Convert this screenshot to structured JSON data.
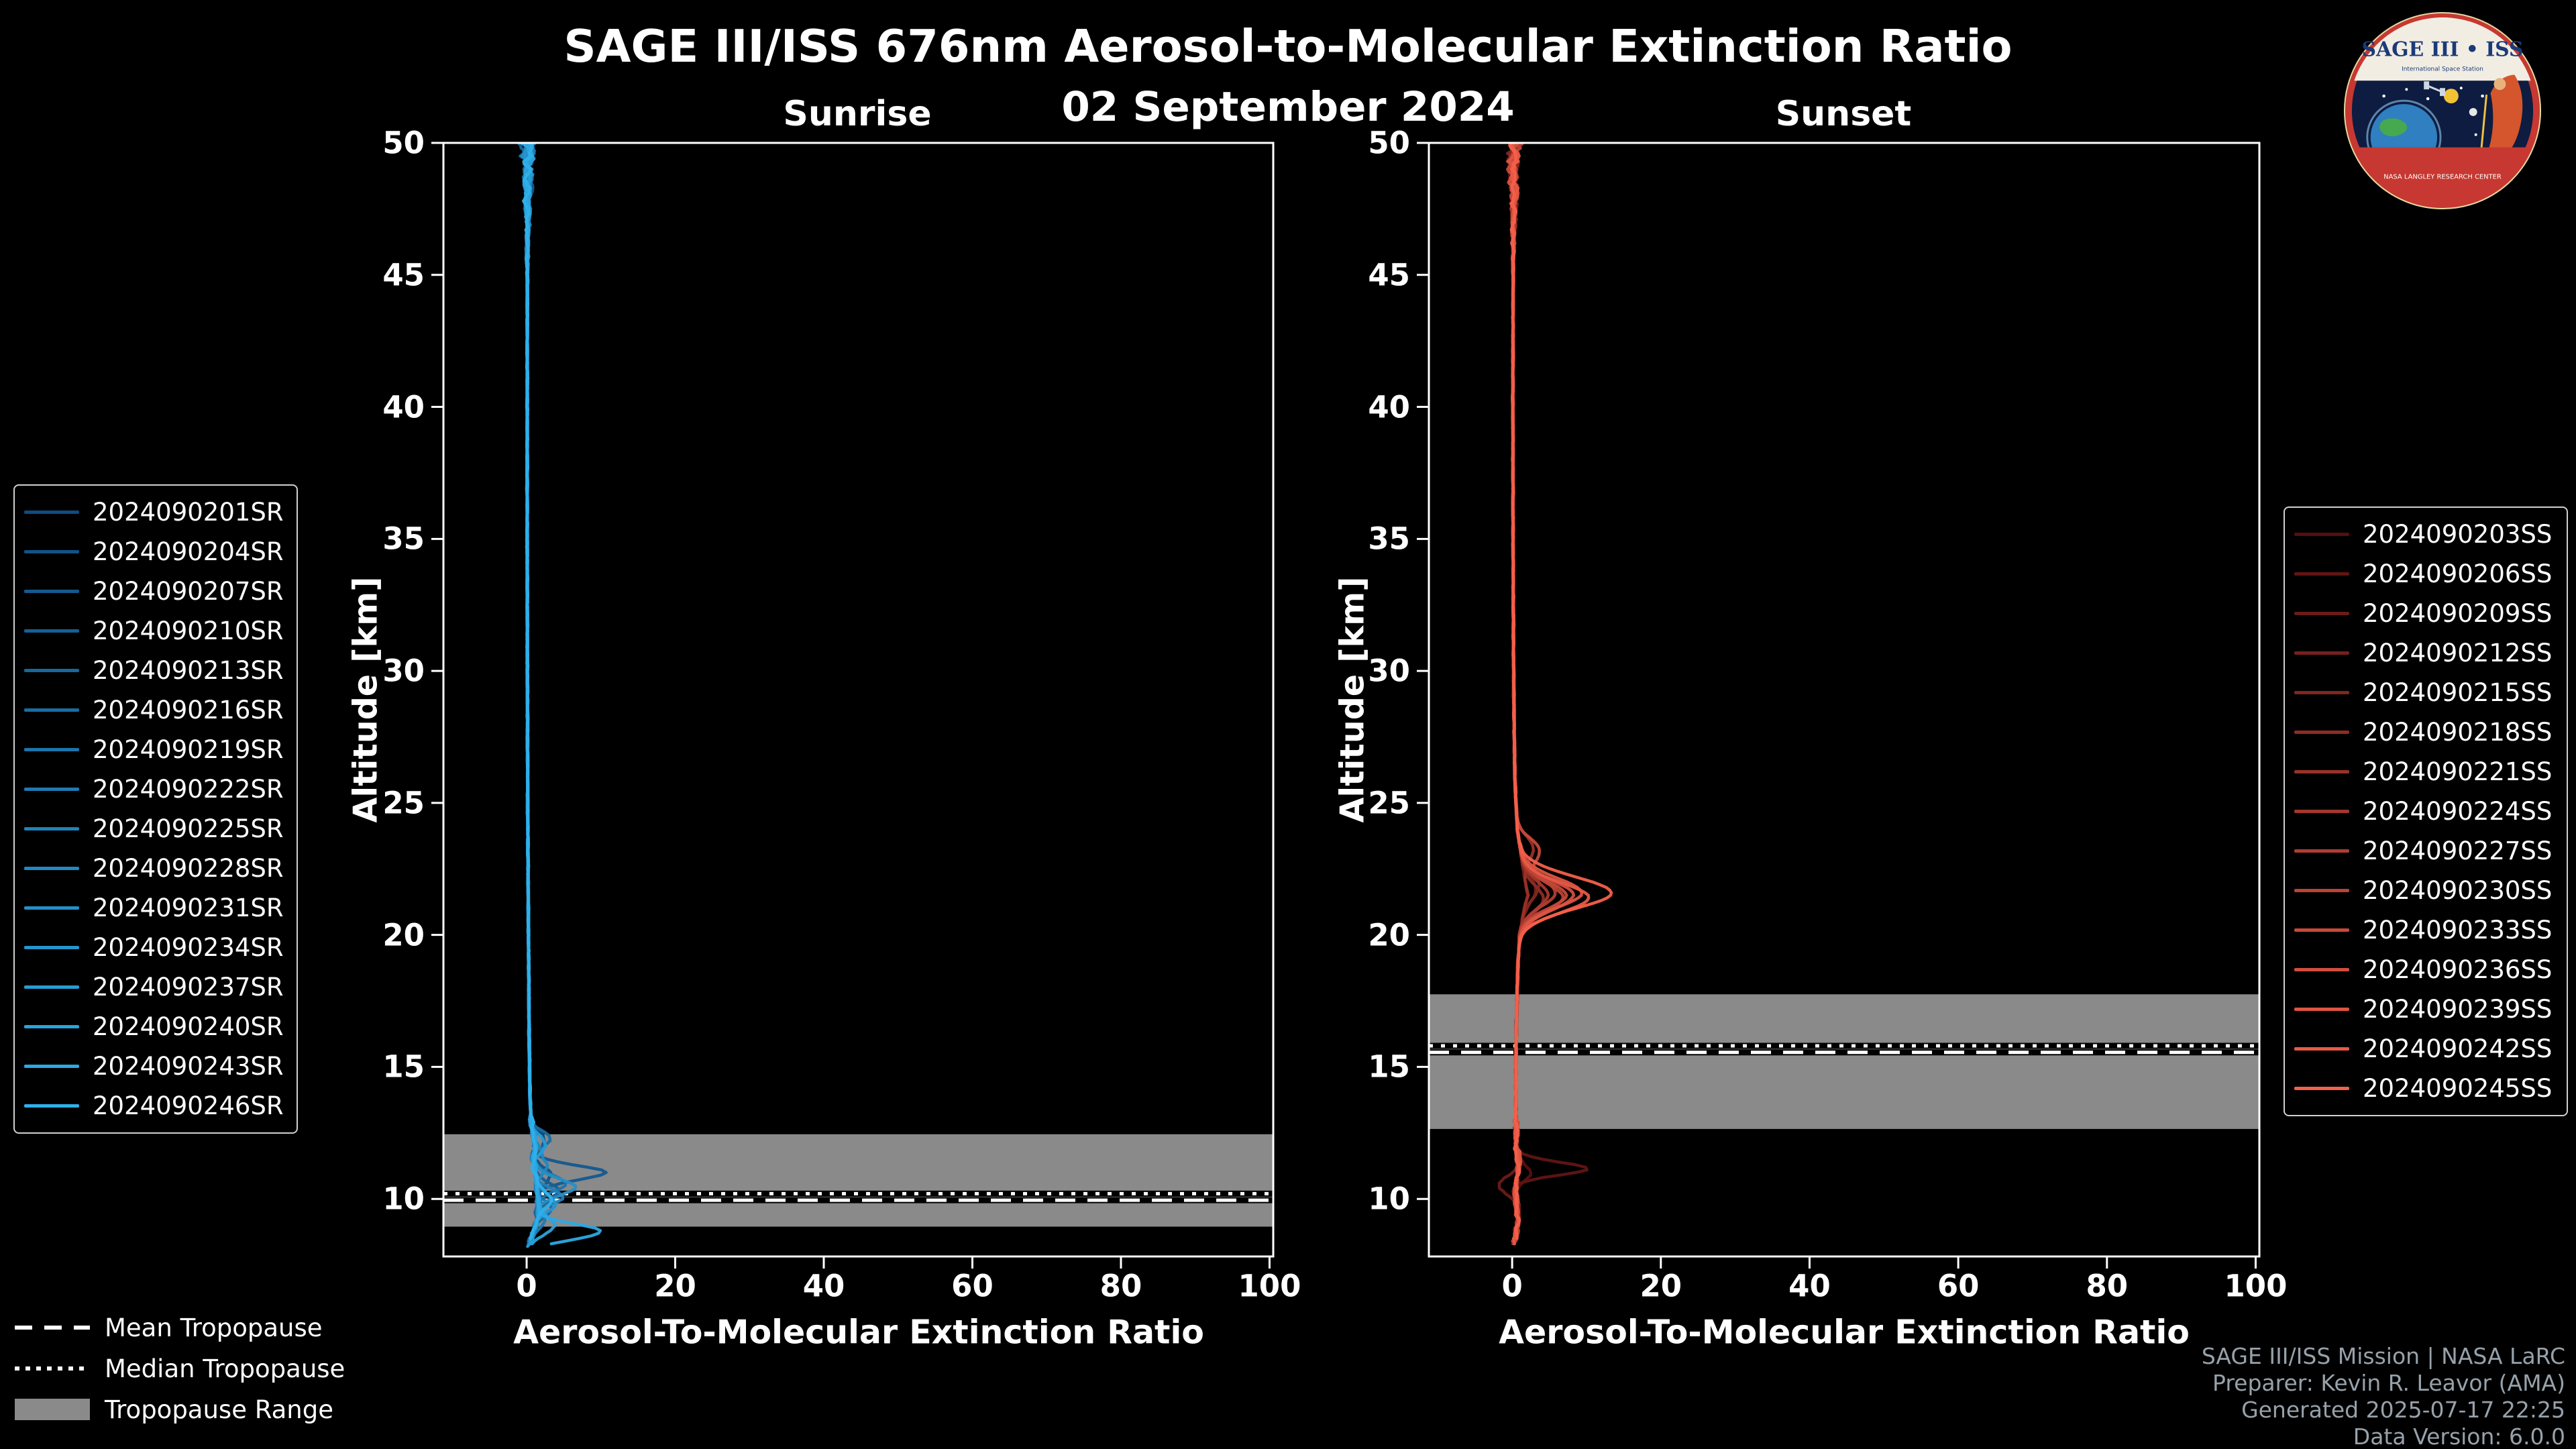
{
  "title": "SAGE III/ISS 676nm Aerosol-to-Molecular Extinction Ratio",
  "date": "02 September 2024",
  "logo": {
    "title": "SAGE III • ISS",
    "subtitle": "International Space Station",
    "ring_text": "NASA LANGLEY RESEARCH CENTER"
  },
  "credits": {
    "line1": "SAGE III/ISS Mission | NASA LaRC",
    "line2": "Preparer: Kevin R. Leavor (AMA)",
    "line3": "Generated 2025-07-17 22:25",
    "line4": "Data Version: 6.0.0"
  },
  "tropopause_legend": [
    {
      "label": "Mean Tropopause",
      "style": "dashed"
    },
    {
      "label": "Median Tropopause",
      "style": "dotted"
    },
    {
      "label": "Tropopause Range",
      "style": "band"
    }
  ],
  "colors": {
    "background": "#000000",
    "text": "#ffffff",
    "band": "#8a8a8a",
    "credits": "#97a1aa",
    "sunrise_accent": "#2fb0ea",
    "sunset_accent": "#f4604a"
  },
  "chart_data": [
    {
      "type": "line",
      "panel": "sunrise",
      "title": "Sunrise",
      "xlabel": "Aerosol-To-Molecular Extinction Ratio",
      "ylabel": "Altitude [km]",
      "xlim": [
        -11.2,
        100.5
      ],
      "ylim": [
        7.82,
        50
      ],
      "xticks": [
        0,
        20,
        40,
        60,
        80,
        100
      ],
      "yticks": [
        10,
        15,
        20,
        25,
        30,
        35,
        40,
        45,
        50
      ],
      "grid": false,
      "tropopause": {
        "mean": 9.95,
        "median": 10.2,
        "range": [
          8.95,
          12.45
        ]
      },
      "base_profile": [
        [
          50,
          0.2
        ],
        [
          48,
          0.15
        ],
        [
          46,
          0.1
        ],
        [
          44,
          0.1
        ],
        [
          40,
          0.08
        ],
        [
          35,
          0.08
        ],
        [
          30,
          0.1
        ],
        [
          25,
          0.15
        ],
        [
          20,
          0.25
        ],
        [
          16,
          0.35
        ],
        [
          14,
          0.45
        ],
        [
          13,
          0.6
        ],
        [
          12.5,
          0.9
        ],
        [
          12,
          1.1
        ],
        [
          11.5,
          0.9
        ],
        [
          11,
          1.2
        ],
        [
          10.5,
          1.4
        ],
        [
          10,
          1.6
        ],
        [
          9.5,
          1.4
        ],
        [
          9,
          1.2
        ],
        [
          8.6,
          0.8
        ],
        [
          8.2,
          0.3
        ]
      ],
      "series": [
        {
          "name": "2024090201SR",
          "color": "#0f4c81",
          "features": [
            [
              12.2,
              1.6,
              0.3
            ]
          ]
        },
        {
          "name": "2024090204SR",
          "color": "#115388",
          "features": [
            [
              10.9,
              2.2,
              0.3
            ]
          ]
        },
        {
          "name": "2024090207SR",
          "color": "#13598f",
          "features": [
            [
              11.0,
              9.3,
              0.28
            ]
          ]
        },
        {
          "name": "2024090210SR",
          "color": "#156096",
          "features": [
            [
              10.3,
              2.8,
              0.3
            ]
          ]
        },
        {
          "name": "2024090213SR",
          "color": "#17679d",
          "features": [
            [
              9.6,
              1.8,
              0.3
            ]
          ]
        },
        {
          "name": "2024090216SR",
          "color": "#196da4",
          "features": [
            [
              12.3,
              2.0,
              0.3
            ]
          ]
        },
        {
          "name": "2024090219SR",
          "color": "#1c74ab",
          "features": [
            [
              10.6,
              3.8,
              0.3
            ]
          ]
        },
        {
          "name": "2024090222SR",
          "color": "#1e7bb2",
          "features": [
            [
              9.2,
              1.4,
              0.25
            ]
          ]
        },
        {
          "name": "2024090225SR",
          "color": "#2081b9",
          "features": [
            [
              10.1,
              3.2,
              0.3
            ]
          ]
        },
        {
          "name": "2024090228SR",
          "color": "#2288c0",
          "features": [
            [
              11.4,
              1.8,
              0.3
            ]
          ]
        },
        {
          "name": "2024090231SR",
          "color": "#248fc7",
          "features": [
            [
              10.45,
              5.2,
              0.3
            ]
          ]
        },
        {
          "name": "2024090234SR",
          "color": "#2695ce",
          "features": [
            [
              9.8,
              2.4,
              0.3
            ]
          ]
        },
        {
          "name": "2024090237SR",
          "color": "#289cd5",
          "features": [
            [
              12.1,
              1.6,
              0.3
            ]
          ]
        },
        {
          "name": "2024090240SR",
          "color": "#2aa3dc",
          "features": [
            [
              9.0,
              2.8,
              0.3
            ]
          ]
        },
        {
          "name": "2024090243SR",
          "color": "#2da9e3",
          "features": [
            [
              8.75,
              8.8,
              0.3
            ]
          ]
        },
        {
          "name": "2024090246SR",
          "color": "#2fb0ea",
          "features": [
            [
              10.0,
              1.8,
              0.3
            ]
          ]
        }
      ]
    },
    {
      "type": "line",
      "panel": "sunset",
      "title": "Sunset",
      "xlabel": "Aerosol-To-Molecular Extinction Ratio",
      "ylabel": "Altitude [km]",
      "xlim": [
        -11.2,
        100.5
      ],
      "ylim": [
        7.82,
        50
      ],
      "xticks": [
        0,
        20,
        40,
        60,
        80,
        100
      ],
      "yticks": [
        10,
        15,
        20,
        25,
        30,
        35,
        40,
        45,
        50
      ],
      "grid": false,
      "tropopause": {
        "mean": 15.55,
        "median": 15.8,
        "range": [
          12.65,
          17.75
        ]
      },
      "base_profile": [
        [
          50,
          0.25
        ],
        [
          48,
          0.2
        ],
        [
          46,
          0.15
        ],
        [
          44,
          0.12
        ],
        [
          40,
          0.1
        ],
        [
          35,
          0.12
        ],
        [
          30,
          0.2
        ],
        [
          26,
          0.35
        ],
        [
          24,
          0.7
        ],
        [
          23,
          1.2
        ],
        [
          22.3,
          1.6
        ],
        [
          21.5,
          2.1
        ],
        [
          20.8,
          1.5
        ],
        [
          20,
          1.0
        ],
        [
          19,
          0.8
        ],
        [
          17,
          0.6
        ],
        [
          15,
          0.5
        ],
        [
          13,
          0.5
        ],
        [
          12,
          0.6
        ],
        [
          11.3,
          0.9
        ],
        [
          10.8,
          0.6
        ],
        [
          10.3,
          0.4
        ],
        [
          9.8,
          0.6
        ],
        [
          9.2,
          0.8
        ],
        [
          8.6,
          0.5
        ],
        [
          8.2,
          0.2
        ]
      ],
      "series": [
        {
          "name": "2024090203SS",
          "color": "#550f0f",
          "features": [
            [
              11.0,
              1.8,
              0.3
            ]
          ]
        },
        {
          "name": "2024090206SS",
          "color": "#601513",
          "features": [
            [
              11.15,
              9.3,
              0.25
            ]
          ]
        },
        {
          "name": "2024090209SS",
          "color": "#6c1b17",
          "features": [
            [
              10.5,
              -2.3,
              0.3
            ]
          ]
        },
        {
          "name": "2024090212SS",
          "color": "#77201c",
          "features": [
            [
              21.8,
              1.2,
              0.5
            ]
          ]
        },
        {
          "name": "2024090215SS",
          "color": "#822620",
          "features": [
            [
              22.0,
              1.8,
              0.5
            ]
          ]
        },
        {
          "name": "2024090218SS",
          "color": "#8e2c24",
          "features": [
            [
              21.3,
              2.2,
              0.5
            ]
          ]
        },
        {
          "name": "2024090221SS",
          "color": "#993228",
          "features": [
            [
              23.3,
              1.8,
              0.45
            ]
          ]
        },
        {
          "name": "2024090224SS",
          "color": "#a4372d",
          "features": [
            [
              21.5,
              2.8,
              0.5
            ]
          ]
        },
        {
          "name": "2024090227SS",
          "color": "#b03d31",
          "features": [
            [
              21.6,
              3.8,
              0.5
            ]
          ]
        },
        {
          "name": "2024090230SS",
          "color": "#bb4335",
          "features": [
            [
              21.4,
              4.8,
              0.55
            ]
          ]
        },
        {
          "name": "2024090233SS",
          "color": "#c64939",
          "features": [
            [
              23.2,
              2.6,
              0.45
            ],
            [
              21.5,
              5.2,
              0.5
            ]
          ]
        },
        {
          "name": "2024090236SS",
          "color": "#d24e3e",
          "features": [
            [
              21.5,
              6.2,
              0.55
            ]
          ]
        },
        {
          "name": "2024090239SS",
          "color": "#dd5442",
          "features": [
            [
              21.6,
              7.3,
              0.55
            ]
          ]
        },
        {
          "name": "2024090242SS",
          "color": "#e85a46",
          "features": [
            [
              21.4,
              8.3,
              0.55
            ]
          ]
        },
        {
          "name": "2024090245SS",
          "color": "#f4604a",
          "features": [
            [
              21.6,
              11.3,
              0.6
            ]
          ]
        }
      ]
    }
  ]
}
